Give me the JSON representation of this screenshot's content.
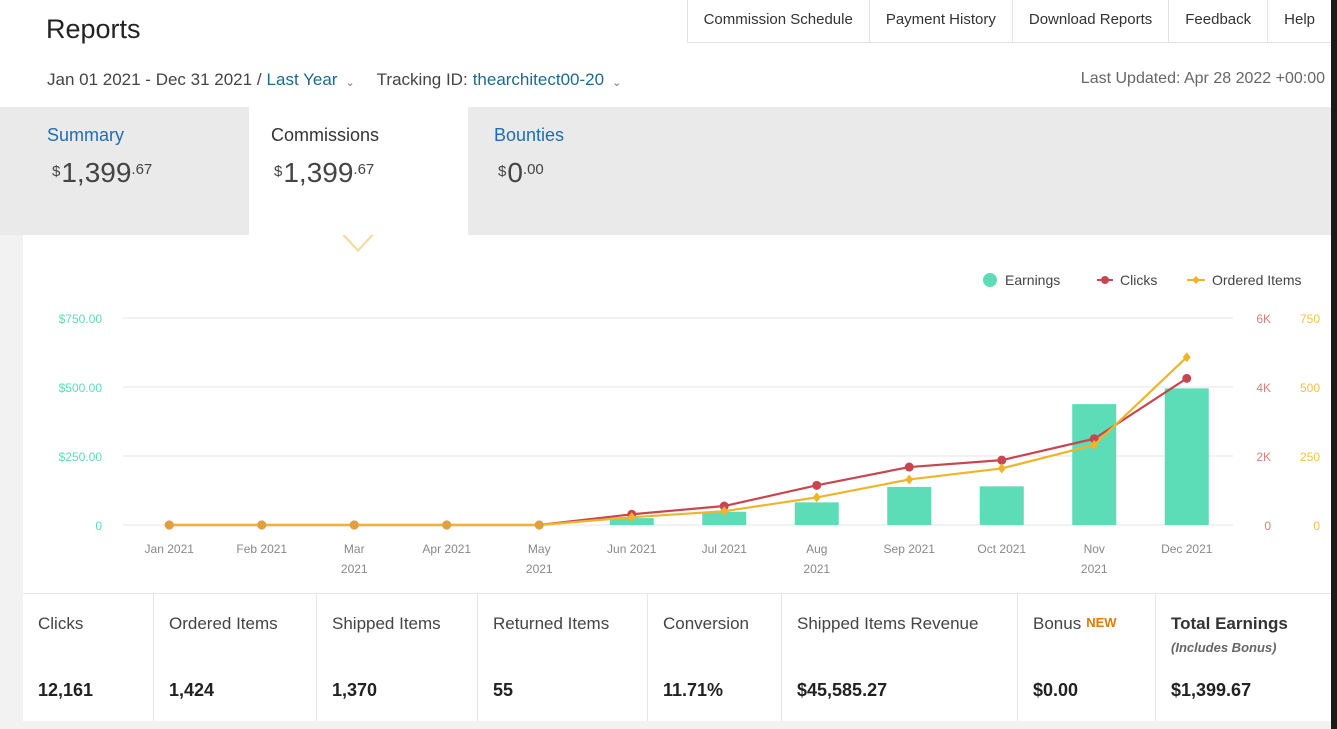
{
  "header": {
    "title": "Reports",
    "nav": [
      "Commission Schedule",
      "Payment History",
      "Download Reports",
      "Feedback",
      "Help"
    ],
    "date_range": "Jan 01 2021 - Dec 31 2021 /",
    "date_preset": "Last Year",
    "tracking_label": "Tracking ID:",
    "tracking_id": "thearchitect00-20",
    "last_updated": "Last Updated: Apr 28 2022 +00:00"
  },
  "tabs": [
    {
      "label": "Summary",
      "currency": "$",
      "amount": "1,399",
      "cents": ".67"
    },
    {
      "label": "Commissions",
      "currency": "$",
      "amount": "1,399",
      "cents": ".67"
    },
    {
      "label": "Bounties",
      "currency": "$",
      "amount": "0",
      "cents": ".00"
    }
  ],
  "chart_data": {
    "type": "bar",
    "categories": [
      "Jan 2021",
      "Feb 2021",
      "Mar 2021",
      "Apr 2021",
      "May 2021",
      "Jun 2021",
      "Jul 2021",
      "Aug 2021",
      "Sep 2021",
      "Oct 2021",
      "Nov 2021",
      "Dec 2021"
    ],
    "series": [
      {
        "name": "Earnings",
        "type": "bar",
        "axis": "left",
        "color": "#5ddcb8",
        "values": [
          0,
          0,
          0,
          0,
          0,
          25,
          48,
          82,
          138,
          140,
          438,
          495
        ]
      },
      {
        "name": "Clicks",
        "type": "line",
        "axis": "right-clicks",
        "color": "#c84650",
        "values": [
          0,
          0,
          0,
          0,
          0,
          310,
          550,
          1150,
          1680,
          1880,
          2500,
          4250
        ]
      },
      {
        "name": "Ordered Items",
        "type": "line",
        "axis": "right-items",
        "color": "#f0b429",
        "values": [
          0,
          0,
          0,
          0,
          0,
          28,
          50,
          100,
          165,
          205,
          290,
          608
        ]
      }
    ],
    "y_left": {
      "ticks": [
        "0",
        "$250.00",
        "$500.00",
        "$750.00"
      ],
      "values": [
        0,
        250,
        500,
        750
      ],
      "range": [
        0,
        750
      ]
    },
    "y_right_clicks": {
      "ticks": [
        "0",
        "2K",
        "4K",
        "6K"
      ],
      "values": [
        0,
        2000,
        4000,
        6000
      ],
      "range": [
        0,
        6000
      ]
    },
    "y_right_items": {
      "ticks": [
        "0",
        "250",
        "500",
        "750"
      ],
      "values": [
        0,
        250,
        500,
        750
      ],
      "range": [
        0,
        750
      ]
    },
    "legend_placement": "top-right",
    "grid": true
  },
  "colors": {
    "earnings": "#5ddcb8",
    "clicks": "#c84650",
    "ordered_items": "#f0b429",
    "link_blue": "#1f6db0",
    "new_badge": "#e07b00"
  },
  "stats": [
    {
      "label": "Clicks",
      "value": "12,161"
    },
    {
      "label": "Ordered Items",
      "value": "1,424"
    },
    {
      "label": "Shipped Items",
      "value": "1,370"
    },
    {
      "label": "Returned Items",
      "value": "55"
    },
    {
      "label": "Conversion",
      "value": "11.71%"
    },
    {
      "label": "Shipped Items Revenue",
      "value": "$45,585.27"
    },
    {
      "label": "Bonus",
      "badge": "NEW",
      "value": "$0.00"
    },
    {
      "label": "Total Earnings",
      "sublabel": "(Includes Bonus)",
      "value": "$1,399.67"
    }
  ]
}
